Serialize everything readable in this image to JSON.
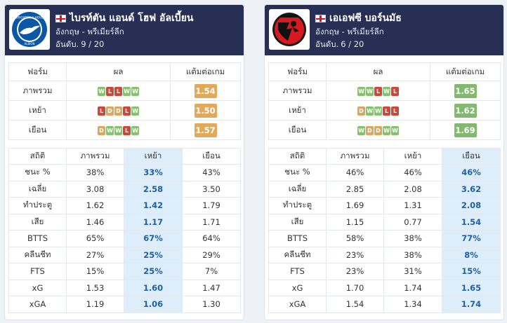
{
  "teams": [
    {
      "name": "ไบรท์ตัน แอนด์ โฮฟ อัลเบี้ยน",
      "league": "อังกฤษ - พรีเมียร์ลีก",
      "rank_label": "อันดับ.",
      "rank_value": "9 / 20",
      "logo": "brighton-crest-icon",
      "logo_text": [
        "BRIGHTON & HOVE",
        "ALBION"
      ],
      "form_headers": [
        "ฟอร์ม",
        "ผล",
        "แต้มต่อเกม"
      ],
      "form_rows": [
        {
          "label": "ภาพรวม",
          "results": [
            "W",
            "L",
            "L",
            "W",
            "W"
          ],
          "ppg": "1.54",
          "ppg_color": "orange"
        },
        {
          "label": "เหย้า",
          "results": [
            "L",
            "D",
            "D",
            "L",
            "W"
          ],
          "ppg": "1.50",
          "ppg_color": "orange"
        },
        {
          "label": "เยือน",
          "results": [
            "D",
            "W",
            "W",
            "L",
            "W"
          ],
          "ppg": "1.57",
          "ppg_color": "orange"
        }
      ],
      "stats_headers": [
        "สถิติ",
        "ภาพรวม",
        "เหย้า",
        "เยือน"
      ],
      "highlight_col": 2,
      "stats_rows": [
        {
          "label": "ชนะ %",
          "values": [
            "38%",
            "33%",
            "43%"
          ]
        },
        {
          "label": "เฉลี่ย",
          "values": [
            "3.08",
            "2.58",
            "3.50"
          ]
        },
        {
          "label": "ทำประตู",
          "values": [
            "1.62",
            "1.42",
            "1.79"
          ]
        },
        {
          "label": "เสีย",
          "values": [
            "1.46",
            "1.17",
            "1.71"
          ]
        },
        {
          "label": "BTTS",
          "values": [
            "65%",
            "67%",
            "64%"
          ]
        },
        {
          "label": "คลีนชีท",
          "values": [
            "27%",
            "25%",
            "29%"
          ]
        },
        {
          "label": "FTS",
          "values": [
            "15%",
            "25%",
            "7%"
          ]
        },
        {
          "label": "xG",
          "values": [
            "1.53",
            "1.60",
            "1.47"
          ]
        },
        {
          "label": "xGA",
          "values": [
            "1.19",
            "1.06",
            "1.30"
          ]
        }
      ]
    },
    {
      "name": "เอเอฟซี บอร์นมัธ",
      "league": "อังกฤษ - พรีเมียร์ลีก",
      "rank_label": "อันดับ.",
      "rank_value": "6 / 20",
      "logo": "bournemouth-crest-icon",
      "form_headers": [
        "ฟอร์ม",
        "ผล",
        "แต้มต่อเกม"
      ],
      "form_rows": [
        {
          "label": "ภาพรวม",
          "results": [
            "W",
            "W",
            "L",
            "W",
            "L"
          ],
          "ppg": "1.65",
          "ppg_color": "green"
        },
        {
          "label": "เหย้า",
          "results": [
            "D",
            "W",
            "W",
            "L",
            "L"
          ],
          "ppg": "1.62",
          "ppg_color": "green"
        },
        {
          "label": "เยือน",
          "results": [
            "W",
            "D",
            "D",
            "W",
            "W"
          ],
          "ppg": "1.69",
          "ppg_color": "green"
        }
      ],
      "stats_headers": [
        "สถิติ",
        "ภาพรวม",
        "เหย้า",
        "เยือน"
      ],
      "highlight_col": 3,
      "stats_rows": [
        {
          "label": "ชนะ %",
          "values": [
            "46%",
            "46%",
            "46%"
          ]
        },
        {
          "label": "เฉลี่ย",
          "values": [
            "2.85",
            "2.08",
            "3.62"
          ]
        },
        {
          "label": "ทำประตู",
          "values": [
            "1.69",
            "1.31",
            "2.08"
          ]
        },
        {
          "label": "เสีย",
          "values": [
            "1.15",
            "0.77",
            "1.54"
          ]
        },
        {
          "label": "BTTS",
          "values": [
            "58%",
            "38%",
            "77%"
          ]
        },
        {
          "label": "คลีนชีท",
          "values": [
            "23%",
            "38%",
            "8%"
          ]
        },
        {
          "label": "FTS",
          "values": [
            "23%",
            "31%",
            "15%"
          ]
        },
        {
          "label": "xG",
          "values": [
            "1.70",
            "1.74",
            "1.65"
          ]
        },
        {
          "label": "xGA",
          "values": [
            "1.54",
            "1.34",
            "1.74"
          ]
        }
      ]
    }
  ],
  "colors": {
    "header_bg": "#273054",
    "win": "#86c16e",
    "loss": "#c9493a",
    "draw": "#dba75a",
    "ppg_orange": "#e3a95a",
    "ppg_green": "#82b96f",
    "highlight": "#ddeefa",
    "highlight_text": "#1f5fa5"
  }
}
